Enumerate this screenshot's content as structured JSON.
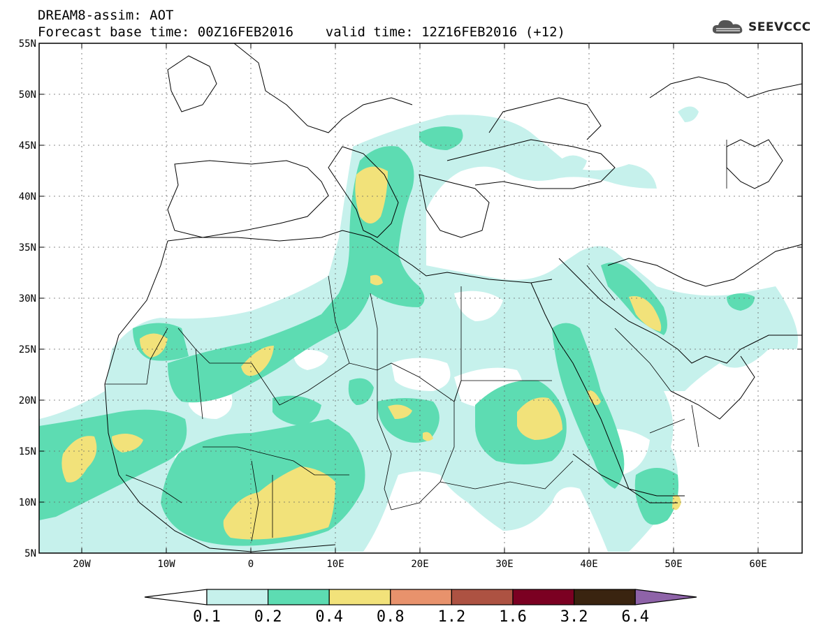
{
  "title_line1": "DREAM8-assim: AOT",
  "title_line2": "Forecast base time: 00Z16FEB2016    valid time: 12Z16FEB2016 (+12)",
  "logo_text": "SEEVCCC",
  "map": {
    "lon_range": [
      -25,
      65
    ],
    "lat_range": [
      5,
      55
    ],
    "lat_labels": [
      "55N",
      "50N",
      "45N",
      "40N",
      "35N",
      "30N",
      "25N",
      "20N",
      "15N",
      "10N",
      "5N"
    ],
    "lon_labels": [
      "20W",
      "10W",
      "0",
      "10E",
      "20E",
      "30E",
      "40E",
      "50E",
      "60E"
    ],
    "gridlines": "dotted"
  },
  "colorbar": {
    "labels": [
      "0.1",
      "0.2",
      "0.4",
      "0.8",
      "1.2",
      "1.6",
      "3.2",
      "6.4"
    ],
    "colors": [
      "#ffffff",
      "#c6f1ec",
      "#5ddcb2",
      "#f2e27a",
      "#e8926c",
      "#ad5242",
      "#7b0022",
      "#3a2410",
      "#8e63a8"
    ]
  },
  "colors": {
    "c1": "#c6f1ec",
    "c2": "#5ddcb2",
    "c3": "#f2e27a"
  }
}
